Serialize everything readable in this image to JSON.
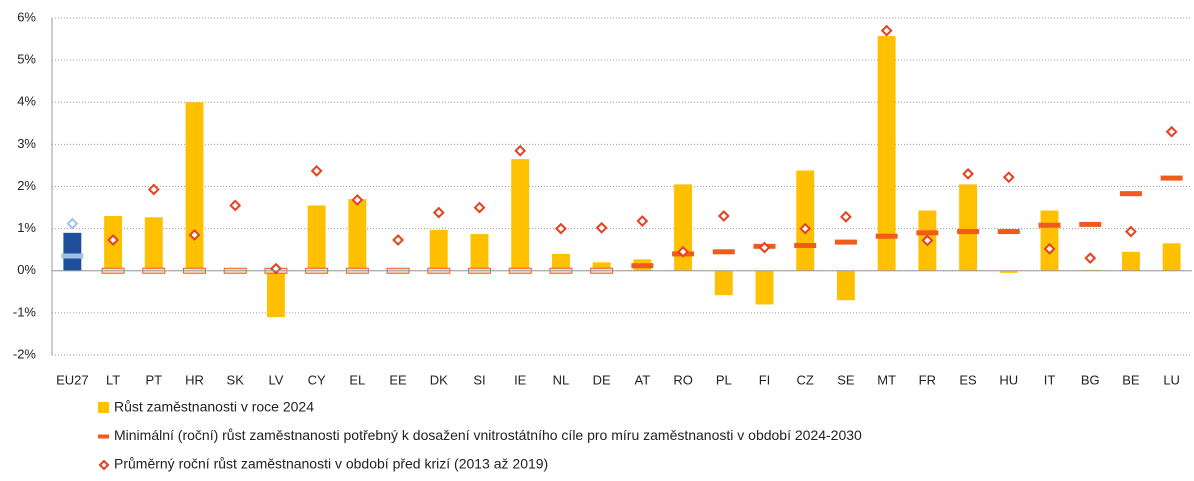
{
  "chart_data": {
    "type": "bar",
    "categories": [
      "EU27",
      "LT",
      "PT",
      "HR",
      "SK",
      "LV",
      "CY",
      "EL",
      "EE",
      "DK",
      "SI",
      "IE",
      "NL",
      "DE",
      "AT",
      "RO",
      "PL",
      "FI",
      "CZ",
      "SE",
      "MT",
      "FR",
      "ES",
      "HU",
      "IT",
      "BG",
      "BE",
      "LU"
    ],
    "series": [
      {
        "name": "Růst zaměstnanosti v roce 2024",
        "color": "#ffc000",
        "kind": "bar",
        "colors": [
          "#1f4e9a",
          "#ffc000",
          "#ffc000",
          "#ffc000",
          "#ffc000",
          "#ffc000",
          "#ffc000",
          "#ffc000",
          "#ffc000",
          "#ffc000",
          "#ffc000",
          "#ffc000",
          "#ffc000",
          "#ffc000",
          "#ffc000",
          "#ffc000",
          "#ffc000",
          "#ffc000",
          "#ffc000",
          "#ffc000",
          "#ffc000",
          "#ffc000",
          "#ffc000",
          "#ffc000",
          "#ffc000",
          "#ffc000",
          "#ffc000",
          "#ffc000"
        ],
        "values": [
          0.9,
          1.3,
          1.27,
          4.0,
          0.02,
          -1.1,
          1.55,
          1.7,
          0.0,
          0.97,
          0.87,
          2.65,
          0.4,
          0.2,
          0.27,
          2.05,
          -0.58,
          -0.8,
          2.38,
          -0.7,
          5.57,
          1.43,
          2.05,
          -0.05,
          1.43,
          0.02,
          0.45,
          0.65
        ]
      },
      {
        "name": "Minimální (roční) růst zaměstnanosti potřebný k dosažení vnitrostátního cíle pro míru zaměstnanosti v období 2024-2030",
        "color": "#f05a1c",
        "kind": "dash",
        "colors": [
          "#9dc3e6",
          "#f05a1c",
          "#f05a1c",
          "#f05a1c",
          "#f05a1c",
          "#f05a1c",
          "#f05a1c",
          "#f05a1c",
          "#f05a1c",
          "#f05a1c",
          "#f05a1c",
          "#f05a1c",
          "#f05a1c",
          "#f05a1c",
          "#f05a1c",
          "#f05a1c",
          "#f05a1c",
          "#f05a1c",
          "#f05a1c",
          "#f05a1c",
          "#f05a1c",
          "#f05a1c",
          "#f05a1c",
          "#f05a1c",
          "#f05a1c",
          "#f05a1c",
          "#f05a1c",
          "#f05a1c"
        ],
        "values": [
          0.35,
          0,
          0,
          0,
          0,
          0,
          0,
          0,
          0,
          0,
          0,
          0,
          0,
          0,
          0.12,
          0.4,
          0.45,
          0.58,
          0.6,
          0.68,
          0.82,
          0.9,
          0.93,
          0.93,
          1.08,
          1.1,
          1.83,
          2.2
        ]
      },
      {
        "name": "Průměrný roční růst zaměstnanosti v období před krizí (2013 až 2019)",
        "color": "#e8401c",
        "kind": "diamond",
        "colors": [
          "#9dc3e6",
          "#e8401c",
          "#e8401c",
          "#e8401c",
          "#e8401c",
          "#e8401c",
          "#e8401c",
          "#e8401c",
          "#e8401c",
          "#e8401c",
          "#e8401c",
          "#e8401c",
          "#e8401c",
          "#e8401c",
          "#e8401c",
          "#e8401c",
          "#e8401c",
          "#e8401c",
          "#e8401c",
          "#e8401c",
          "#e8401c",
          "#e8401c",
          "#e8401c",
          "#e8401c",
          "#e8401c",
          "#e8401c",
          "#e8401c",
          "#e8401c"
        ],
        "values": [
          1.12,
          0.73,
          1.93,
          0.85,
          1.55,
          0.05,
          2.37,
          1.68,
          0.73,
          1.38,
          1.5,
          2.85,
          1.0,
          1.02,
          1.18,
          0.45,
          1.3,
          0.55,
          1.0,
          1.28,
          5.7,
          0.72,
          2.3,
          2.22,
          0.52,
          0.3,
          0.93,
          3.3
        ]
      }
    ],
    "ylim": [
      -2,
      6
    ],
    "yticks": [
      {
        "value": -2,
        "label": "-2%"
      },
      {
        "value": -1,
        "label": "-1%"
      },
      {
        "value": 0,
        "label": "0%"
      },
      {
        "value": 1,
        "label": "1%"
      },
      {
        "value": 2,
        "label": "2%"
      },
      {
        "value": 3,
        "label": "3%"
      },
      {
        "value": 4,
        "label": "4%"
      },
      {
        "value": 5,
        "label": "5%"
      },
      {
        "value": 6,
        "label": "6%"
      }
    ],
    "grid": true
  }
}
